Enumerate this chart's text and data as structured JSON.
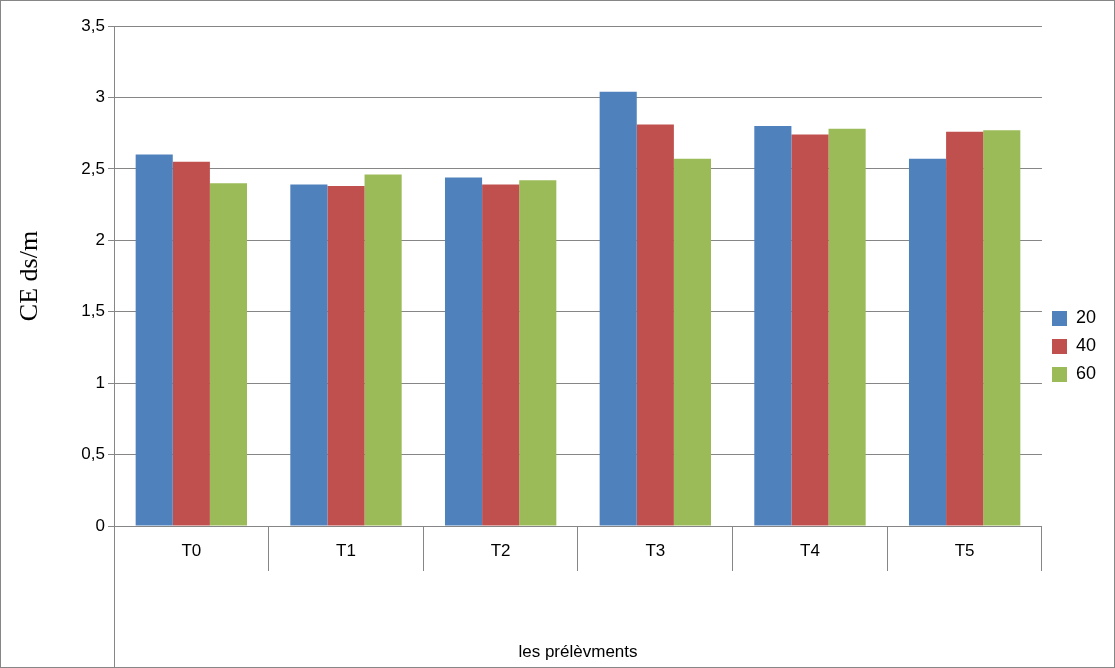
{
  "chart_data": {
    "type": "bar",
    "xlabel": "les prélèvments",
    "ylabel": "CE ds/m",
    "categories": [
      "T0",
      "T1",
      "T2",
      "T3",
      "T4",
      "T5"
    ],
    "series": [
      {
        "name": "20",
        "color": "#4f81bd",
        "values": [
          2.6,
          2.39,
          2.44,
          3.04,
          2.8,
          2.57
        ]
      },
      {
        "name": "40",
        "color": "#c0504d",
        "values": [
          2.55,
          2.38,
          2.39,
          2.81,
          2.74,
          2.76
        ]
      },
      {
        "name": "60",
        "color": "#9bbb59",
        "values": [
          2.4,
          2.46,
          2.42,
          2.57,
          2.78,
          2.77
        ]
      }
    ],
    "ylim": [
      0,
      3.5
    ],
    "yticks": [
      0,
      {
        "value": 0.5,
        "label": "0,5"
      },
      1,
      {
        "value": 1.5,
        "label": "1,5"
      },
      2,
      {
        "value": 2.5,
        "label": "2,5"
      },
      3,
      {
        "value": 3.5,
        "label": "3,5"
      }
    ],
    "grid": "y",
    "legend": "right"
  }
}
